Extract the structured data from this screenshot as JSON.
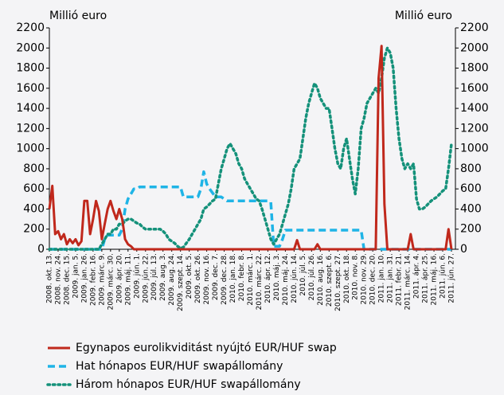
{
  "chart_data": {
    "type": "line",
    "y_label": "Millió euro",
    "y2_label": "Millió euro",
    "ylim": [
      0,
      2200
    ],
    "yticks": [
      0,
      200,
      400,
      600,
      800,
      1000,
      1200,
      1400,
      1600,
      1800,
      2000,
      2200
    ],
    "y2lim": [
      0,
      2200
    ],
    "y2ticks": [
      0,
      200,
      400,
      600,
      800,
      1000,
      1200,
      1400,
      1600,
      1800,
      2000,
      2200
    ],
    "grid": false,
    "legend": "bottom",
    "categories": [
      "2008. okt. 13.",
      null,
      null,
      "2008. nov. 24.",
      null,
      null,
      "2008. dec. 15.",
      null,
      null,
      "2009. jan. 5.",
      null,
      null,
      "2009. jan. 26.",
      null,
      null,
      "2009. febr. 16.",
      null,
      null,
      "2009. márc. 9.",
      null,
      null,
      "2009. márc. 30.",
      null,
      null,
      "2009. ápr. 20.",
      null,
      null,
      "2009. máj. 11.",
      null,
      null,
      "2009. jún. 1.",
      null,
      null,
      "2009. jún. 22.",
      null,
      null,
      "2009. júl. 13.",
      null,
      null,
      "2009. aug. 3.",
      null,
      null,
      "2009. aug. 24.",
      null,
      null,
      "2009. szept. 14.",
      null,
      null,
      "2009. okt. 5.",
      null,
      null,
      "2009. okt. 26.",
      null,
      null,
      "2009. nov. 16.",
      null,
      null,
      "2009. dec. 7.",
      null,
      null,
      "2009. dec. 28.",
      null,
      null,
      "2010. jan. 18.",
      null,
      null,
      "2010. febr. 8.",
      null,
      null,
      "2010. márc. 1.",
      null,
      null,
      "2010. márc. 22.",
      null,
      null,
      "2010. ápr. 12.",
      null,
      null,
      "2010. máj. 3.",
      null,
      null,
      "2010. máj. 24.",
      null,
      null,
      "2010. jún. 14.",
      null,
      null,
      "2010. júl. 5.",
      null,
      null,
      "2010. júl. 26.",
      null,
      null,
      "2010. aug. 16.",
      null,
      null,
      "2010. szept. 6.",
      null,
      null,
      "2010. szept. 27.",
      null,
      null,
      "2010. okt. 18.",
      null,
      null,
      "2010. nov. 8.",
      null,
      null,
      "2010. nov. 29.",
      null,
      null,
      "2010. dec. 20.",
      null,
      null,
      "2011. jan. 10.",
      null,
      null,
      "2011. jan. 31.",
      null,
      null,
      "2011. febr. 21.",
      null,
      null,
      "2011. márc. 14.",
      null,
      null,
      "2011. ápr. 4.",
      null,
      null,
      "2011. ápr. 25.",
      null,
      null,
      "2011. máj. 16.",
      null,
      null,
      "2011. jún. 6.",
      null,
      null,
      "2011. jún. 27."
    ],
    "series": [
      {
        "name": "Egynapos eurolikviditást nyújtó EUR/HUF swap",
        "color": "#c0281c",
        "style": "solid",
        "values": [
          400,
          630,
          150,
          180,
          100,
          150,
          50,
          100,
          60,
          100,
          40,
          80,
          480,
          480,
          150,
          300,
          480,
          380,
          100,
          250,
          400,
          480,
          380,
          300,
          400,
          300,
          100,
          50,
          30,
          0,
          0,
          0,
          0,
          0,
          0,
          0,
          0,
          0,
          0,
          0,
          0,
          0,
          0,
          0,
          0,
          0,
          0,
          0,
          0,
          0,
          0,
          0,
          0,
          0,
          0,
          0,
          0,
          0,
          0,
          0,
          0,
          0,
          0,
          0,
          0,
          0,
          0,
          0,
          0,
          0,
          0,
          0,
          0,
          0,
          0,
          0,
          0,
          0,
          0,
          0,
          0,
          0,
          0,
          0,
          0,
          90,
          0,
          0,
          0,
          0,
          0,
          0,
          50,
          0,
          0,
          0,
          0,
          0,
          0,
          0,
          0,
          0,
          0,
          0,
          0,
          0,
          0,
          0,
          0,
          0,
          0,
          0,
          0,
          1700,
          2020,
          450,
          0,
          0,
          0,
          0,
          0,
          0,
          0,
          0,
          150,
          0,
          0,
          0,
          0,
          0,
          0,
          0,
          0,
          0,
          0,
          0,
          0,
          200,
          0
        ]
      },
      {
        "name": "Hat hónapos EUR/HUF swapállomány",
        "color": "#1fb4e6",
        "style": "dashed",
        "values": [
          0,
          0,
          0,
          0,
          0,
          0,
          0,
          0,
          0,
          0,
          0,
          0,
          0,
          0,
          0,
          0,
          0,
          0,
          0,
          100,
          140,
          140,
          140,
          140,
          140,
          200,
          400,
          500,
          550,
          600,
          600,
          620,
          620,
          620,
          620,
          620,
          620,
          620,
          620,
          620,
          620,
          620,
          620,
          620,
          620,
          620,
          520,
          520,
          520,
          520,
          520,
          520,
          600,
          770,
          650,
          600,
          560,
          520,
          520,
          520,
          500,
          480,
          480,
          480,
          480,
          480,
          480,
          480,
          480,
          480,
          480,
          480,
          480,
          480,
          480,
          480,
          470,
          30,
          30,
          30,
          100,
          190,
          190,
          190,
          190,
          190,
          190,
          190,
          190,
          190,
          190,
          190,
          190,
          190,
          190,
          190,
          190,
          190,
          190,
          190,
          190,
          190,
          190,
          190,
          190,
          190,
          190,
          190,
          0,
          0,
          0,
          0,
          0,
          0,
          0,
          0,
          0,
          0,
          0,
          0,
          0,
          0,
          0,
          0,
          0,
          0,
          0,
          0,
          0,
          0,
          0,
          0,
          0,
          0,
          0,
          0,
          0,
          0,
          0
        ]
      },
      {
        "name": "Három hónapos EUR/HUF swapállomány",
        "color": "#14917a",
        "style": "dotted",
        "values": [
          0,
          0,
          0,
          0,
          0,
          0,
          0,
          0,
          0,
          0,
          0,
          0,
          0,
          0,
          0,
          0,
          0,
          0,
          50,
          100,
          150,
          150,
          200,
          200,
          250,
          250,
          280,
          300,
          300,
          280,
          260,
          250,
          220,
          200,
          200,
          200,
          200,
          200,
          200,
          180,
          150,
          100,
          80,
          60,
          30,
          10,
          20,
          60,
          100,
          150,
          200,
          250,
          300,
          400,
          420,
          450,
          480,
          500,
          650,
          800,
          900,
          1000,
          1050,
          1000,
          950,
          850,
          800,
          700,
          650,
          600,
          550,
          500,
          480,
          400,
          300,
          200,
          100,
          50,
          100,
          150,
          250,
          350,
          450,
          600,
          800,
          850,
          900,
          1100,
          1300,
          1450,
          1550,
          1650,
          1600,
          1500,
          1450,
          1400,
          1400,
          1200,
          1000,
          850,
          800,
          1000,
          1100,
          900,
          700,
          550,
          800,
          1200,
          1300,
          1450,
          1500,
          1550,
          1600,
          1550,
          1700,
          1900,
          2000,
          1950,
          1800,
          1400,
          1100,
          900,
          800,
          850,
          800,
          850,
          500,
          400,
          400,
          420,
          450,
          480,
          500,
          520,
          550,
          580,
          600,
          800,
          1050
        ]
      }
    ]
  }
}
